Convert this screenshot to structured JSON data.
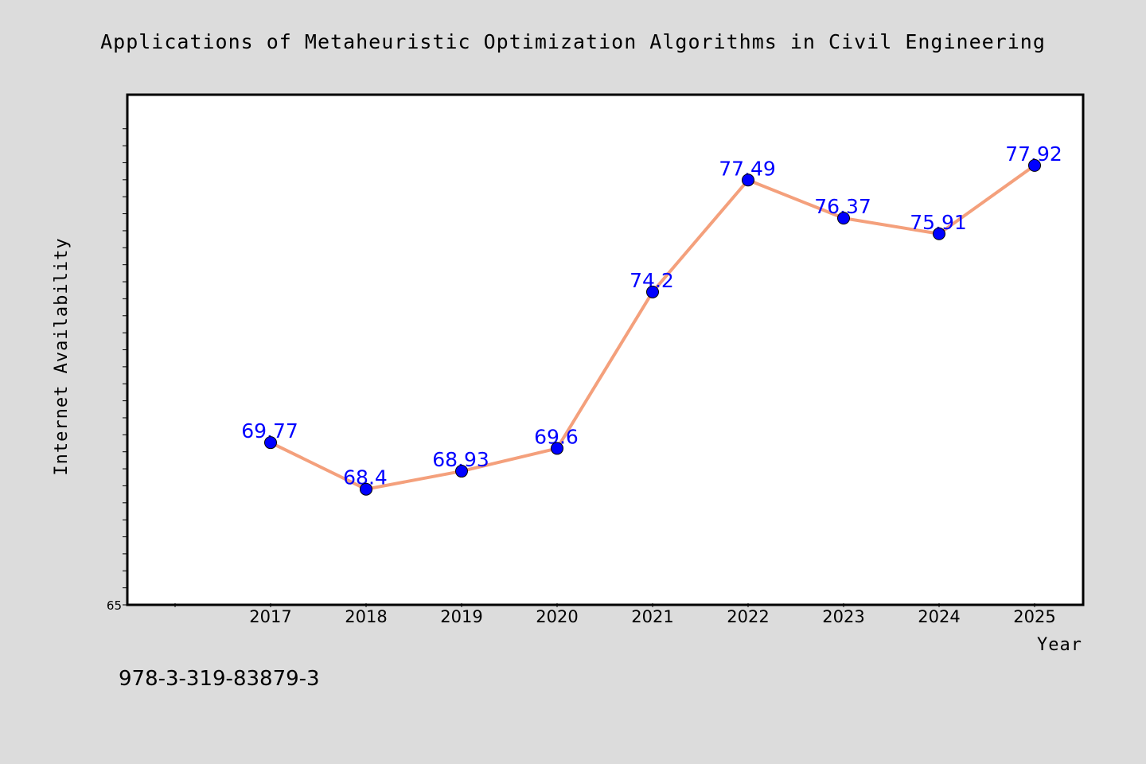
{
  "footer": {
    "text": "978-3-319-83879-3"
  },
  "colors": {
    "background": "#dcdcdc",
    "plot_background": "#ffffff",
    "line": "#f4a07c",
    "marker": "#0000ff",
    "data_label": "#0000ff"
  },
  "chart_data": {
    "type": "line",
    "title": "Applications of Metaheuristic Optimization Algorithms in Civil Engineering",
    "xlabel": "Year",
    "ylabel": "Internet Availability",
    "categories": [
      "2017",
      "2018",
      "2019",
      "2020",
      "2021",
      "2022",
      "2023",
      "2024",
      "2025"
    ],
    "series": [
      {
        "values": [
          69.77,
          68.4,
          68.93,
          69.6,
          74.2,
          77.49,
          76.37,
          75.91,
          77.92
        ]
      }
    ],
    "data_labels": [
      "69.77",
      "68.4",
      "68.93",
      "69.6",
      "74.2",
      "77.49",
      "76.37",
      "75.91",
      "77.92"
    ],
    "ylim": [
      65,
      80
    ],
    "ytick_labels": [
      "65"
    ],
    "xtick_start": 2016,
    "grid": false,
    "legend": "none"
  }
}
